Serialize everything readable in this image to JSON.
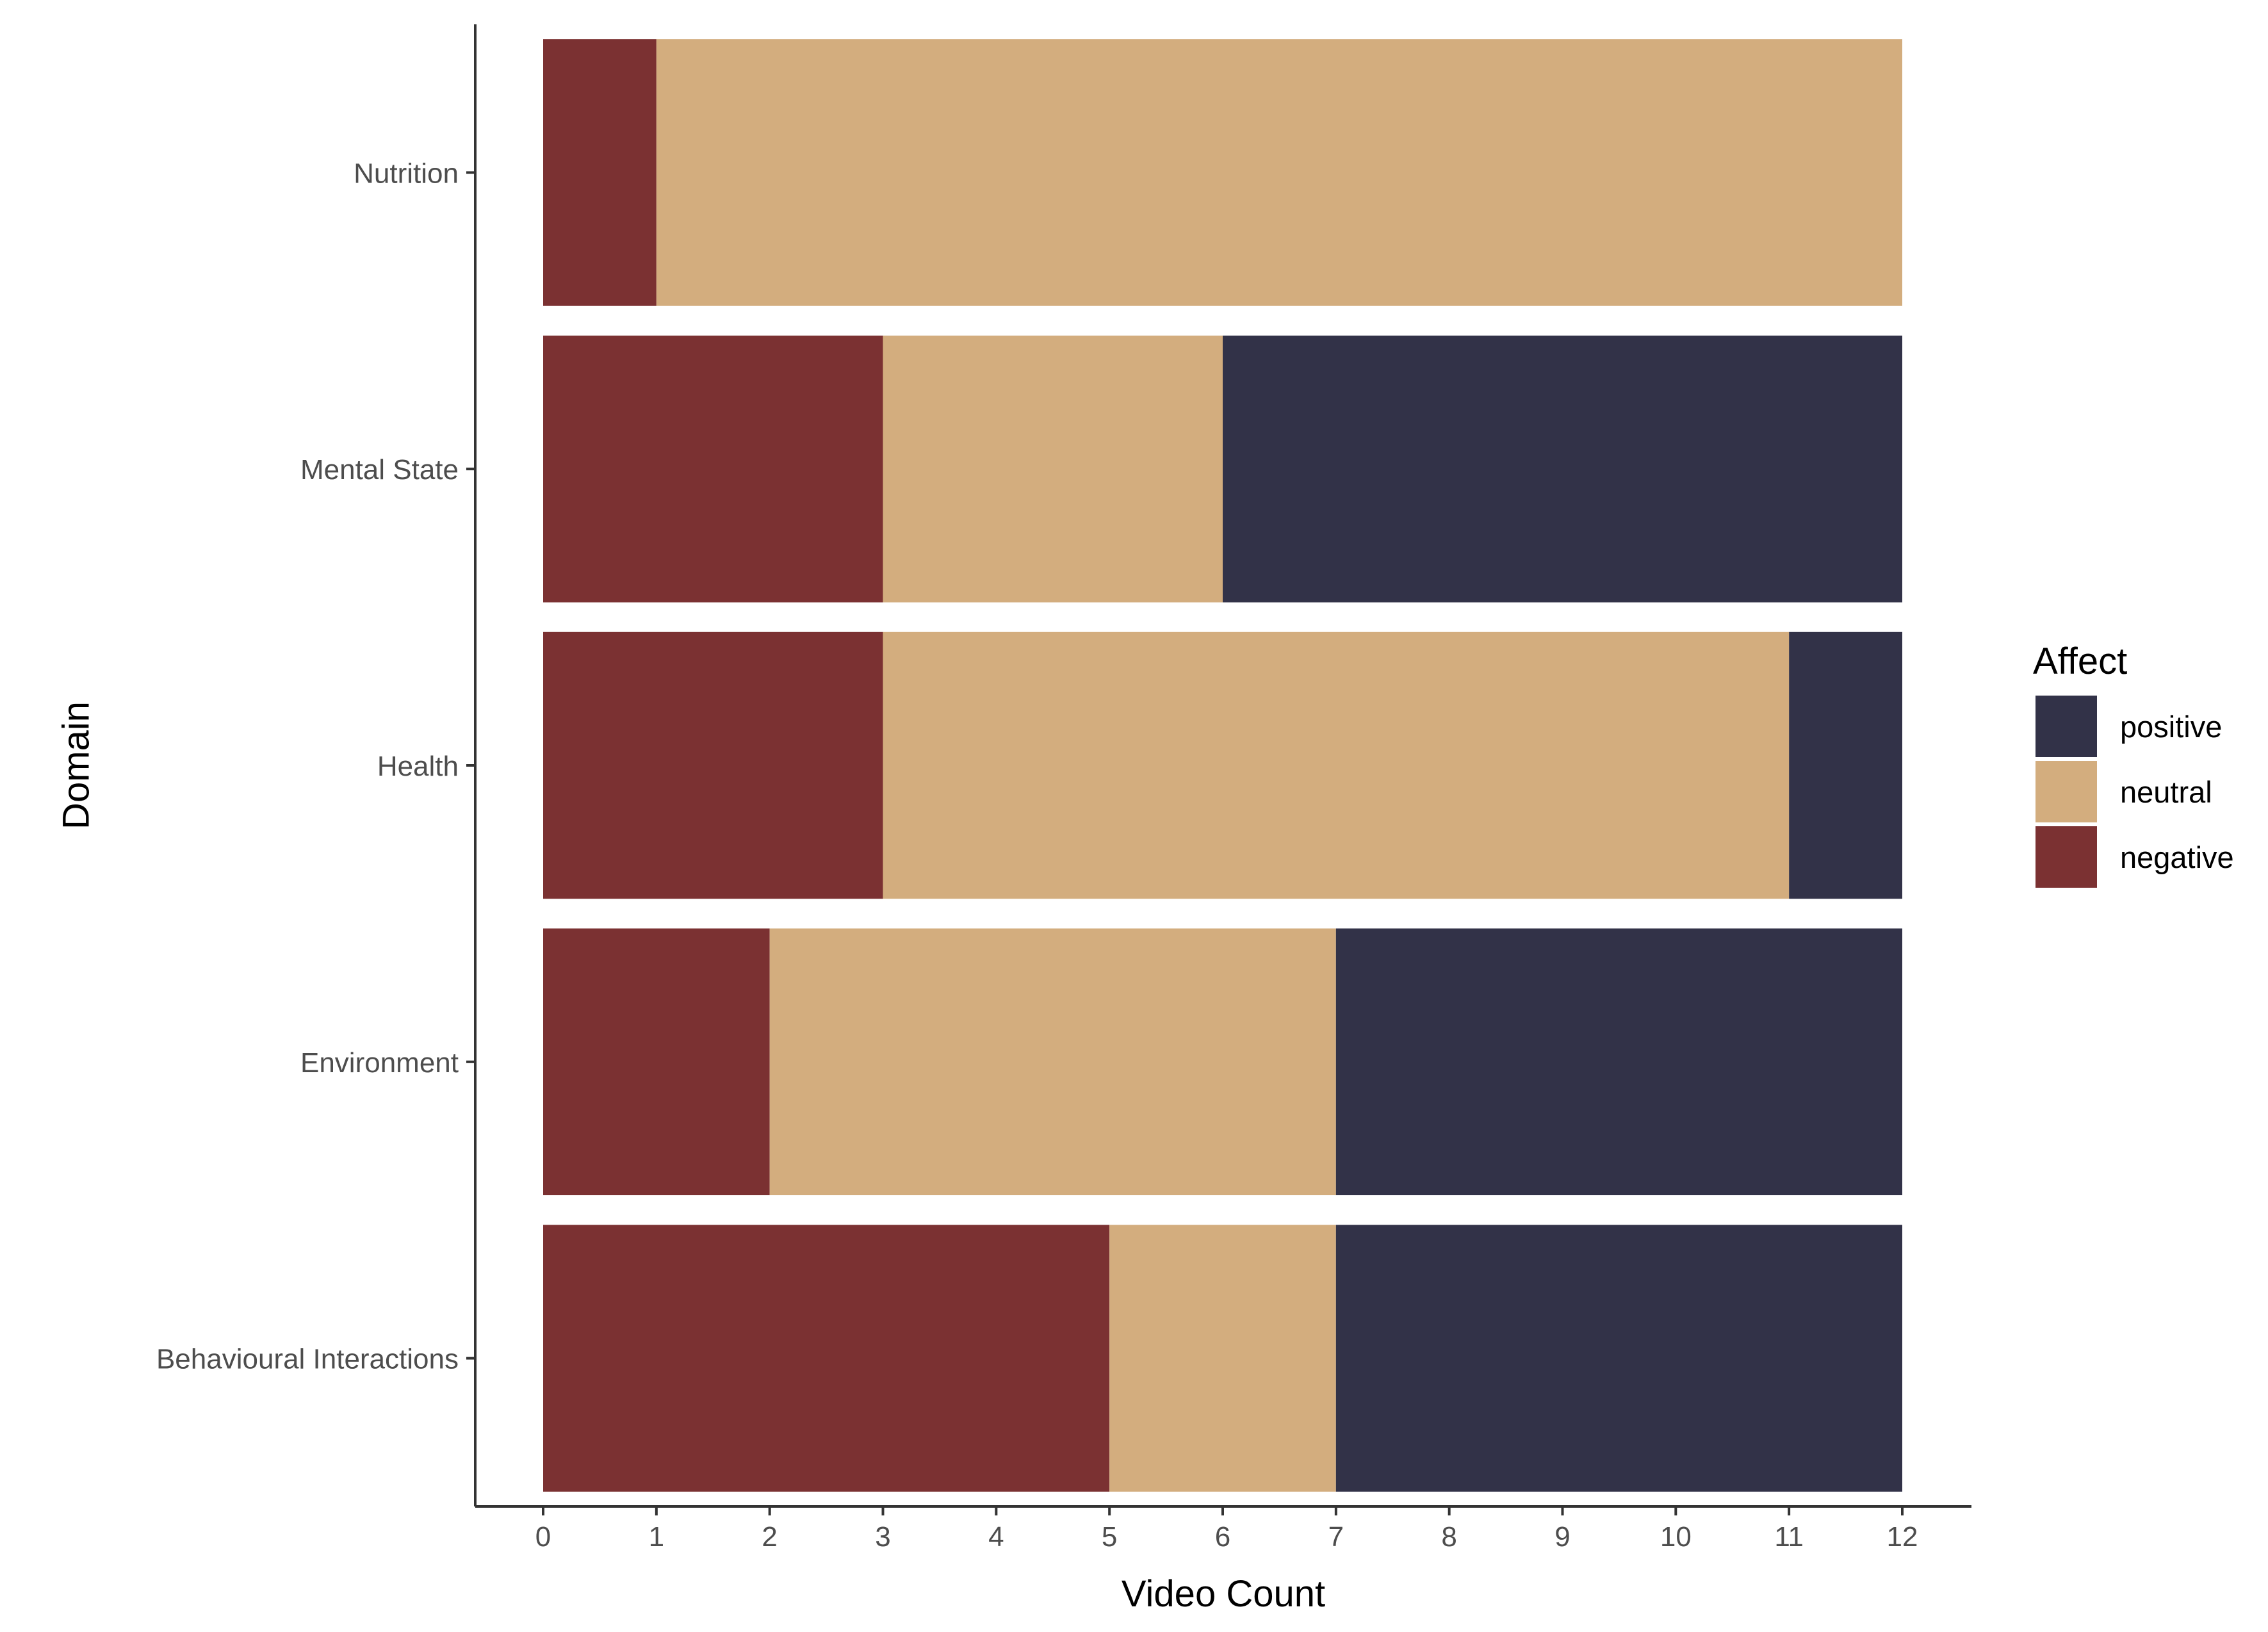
{
  "chart_data": {
    "type": "bar",
    "orientation": "horizontal",
    "stacked": true,
    "title": "",
    "xlabel": "Video Count",
    "ylabel": "Domain",
    "xlim": [
      0,
      12
    ],
    "x_ticks": [
      0,
      1,
      2,
      3,
      4,
      5,
      6,
      7,
      8,
      9,
      10,
      11,
      12
    ],
    "grid": false,
    "legend_position": "right",
    "legend_title": "Affect",
    "categories": [
      "Nutrition",
      "Mental State",
      "Health",
      "Environment",
      "Behavioural Interactions"
    ],
    "series": [
      {
        "name": "negative",
        "color": "#7b3132",
        "values": [
          1,
          3,
          3,
          2,
          5
        ]
      },
      {
        "name": "neutral",
        "color": "#d3ad7e",
        "values": [
          11,
          3,
          8,
          5,
          2
        ]
      },
      {
        "name": "positive",
        "color": "#323248",
        "values": [
          0,
          6,
          1,
          5,
          5
        ]
      }
    ],
    "legend_order": [
      "positive",
      "neutral",
      "negative"
    ]
  }
}
